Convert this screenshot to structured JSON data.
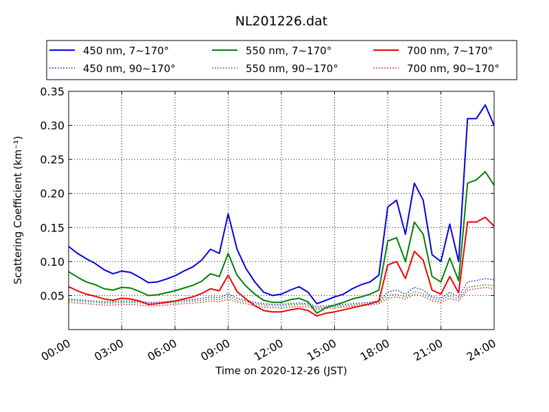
{
  "chart_data": {
    "type": "line",
    "title": "NL201226.dat",
    "xlabel": "Time on 2020-12-26 (JST)",
    "ylabel": "Scattering Coefficient (km⁻¹)",
    "xlim": [
      "00:00",
      "24:00"
    ],
    "ylim": [
      0,
      0.35
    ],
    "grid": true,
    "legend_position": "top",
    "x_ticks": [
      "00:00",
      "03:00",
      "06:00",
      "09:00",
      "12:00",
      "15:00",
      "18:00",
      "21:00",
      "24:00"
    ],
    "y_ticks": [
      "0.05",
      "0.10",
      "0.15",
      "0.20",
      "0.25",
      "0.30",
      "0.35"
    ],
    "x": [
      "00:00",
      "00:30",
      "01:00",
      "01:30",
      "02:00",
      "02:30",
      "03:00",
      "03:30",
      "04:00",
      "04:30",
      "05:00",
      "05:30",
      "06:00",
      "06:30",
      "07:00",
      "07:30",
      "08:00",
      "08:30",
      "09:00",
      "09:30",
      "10:00",
      "10:30",
      "11:00",
      "11:30",
      "12:00",
      "12:30",
      "13:00",
      "13:30",
      "14:00",
      "14:30",
      "15:00",
      "15:30",
      "16:00",
      "16:30",
      "17:00",
      "17:30",
      "18:00",
      "18:30",
      "19:00",
      "19:30",
      "20:00",
      "20:30",
      "21:00",
      "21:30",
      "22:00",
      "22:30",
      "23:00",
      "23:30",
      "24:00"
    ],
    "series": [
      {
        "name": "450 nm, 7∼170°",
        "color": "#0000dd",
        "style": "solid",
        "values": [
          0.122,
          0.112,
          0.104,
          0.097,
          0.088,
          0.082,
          0.086,
          0.084,
          0.077,
          0.069,
          0.07,
          0.074,
          0.079,
          0.086,
          0.092,
          0.102,
          0.118,
          0.112,
          0.17,
          0.118,
          0.09,
          0.07,
          0.055,
          0.05,
          0.052,
          0.058,
          0.063,
          0.055,
          0.038,
          0.043,
          0.048,
          0.052,
          0.06,
          0.066,
          0.07,
          0.08,
          0.18,
          0.19,
          0.14,
          0.215,
          0.19,
          0.11,
          0.1,
          0.155,
          0.1,
          0.31,
          0.31,
          0.33,
          0.3
        ]
      },
      {
        "name": "450 nm, 90∼170°",
        "color": "#0000dd",
        "style": "dotted",
        "values": [
          0.045,
          0.044,
          0.043,
          0.042,
          0.041,
          0.041,
          0.042,
          0.042,
          0.041,
          0.04,
          0.04,
          0.041,
          0.042,
          0.043,
          0.044,
          0.046,
          0.048,
          0.047,
          0.053,
          0.046,
          0.043,
          0.04,
          0.038,
          0.037,
          0.037,
          0.038,
          0.039,
          0.038,
          0.034,
          0.035,
          0.036,
          0.037,
          0.038,
          0.039,
          0.04,
          0.042,
          0.055,
          0.058,
          0.052,
          0.062,
          0.058,
          0.048,
          0.046,
          0.055,
          0.048,
          0.07,
          0.072,
          0.075,
          0.073
        ]
      },
      {
        "name": "550 nm, 7∼170°",
        "color": "#008000",
        "style": "solid",
        "values": [
          0.085,
          0.077,
          0.07,
          0.066,
          0.06,
          0.058,
          0.062,
          0.061,
          0.056,
          0.05,
          0.051,
          0.054,
          0.057,
          0.061,
          0.065,
          0.071,
          0.082,
          0.078,
          0.112,
          0.08,
          0.064,
          0.052,
          0.043,
          0.04,
          0.04,
          0.044,
          0.046,
          0.041,
          0.024,
          0.032,
          0.036,
          0.04,
          0.045,
          0.048,
          0.052,
          0.058,
          0.13,
          0.135,
          0.1,
          0.158,
          0.14,
          0.078,
          0.07,
          0.105,
          0.072,
          0.215,
          0.22,
          0.232,
          0.212
        ]
      },
      {
        "name": "550 nm, 90∼170°",
        "color": "#008000",
        "style": "dotted",
        "values": [
          0.043,
          0.042,
          0.041,
          0.04,
          0.039,
          0.039,
          0.04,
          0.04,
          0.039,
          0.038,
          0.038,
          0.039,
          0.04,
          0.041,
          0.042,
          0.043,
          0.045,
          0.044,
          0.049,
          0.043,
          0.041,
          0.038,
          0.036,
          0.035,
          0.035,
          0.036,
          0.037,
          0.036,
          0.032,
          0.033,
          0.034,
          0.035,
          0.036,
          0.037,
          0.038,
          0.04,
          0.05,
          0.052,
          0.048,
          0.056,
          0.053,
          0.045,
          0.043,
          0.05,
          0.045,
          0.062,
          0.064,
          0.066,
          0.064
        ]
      },
      {
        "name": "700 nm, 7∼170°",
        "color": "#ee0000",
        "style": "solid",
        "values": [
          0.063,
          0.057,
          0.052,
          0.049,
          0.045,
          0.043,
          0.046,
          0.045,
          0.042,
          0.037,
          0.038,
          0.04,
          0.042,
          0.045,
          0.048,
          0.053,
          0.06,
          0.057,
          0.08,
          0.056,
          0.045,
          0.035,
          0.028,
          0.026,
          0.026,
          0.029,
          0.031,
          0.028,
          0.02,
          0.024,
          0.026,
          0.029,
          0.032,
          0.035,
          0.038,
          0.042,
          0.095,
          0.1,
          0.075,
          0.115,
          0.102,
          0.058,
          0.052,
          0.078,
          0.054,
          0.158,
          0.158,
          0.165,
          0.152
        ]
      },
      {
        "name": "700 nm, 90∼170°",
        "color": "#ee0000",
        "style": "dotted",
        "values": [
          0.04,
          0.039,
          0.038,
          0.037,
          0.036,
          0.036,
          0.037,
          0.037,
          0.036,
          0.035,
          0.035,
          0.036,
          0.037,
          0.038,
          0.039,
          0.04,
          0.042,
          0.041,
          0.045,
          0.04,
          0.038,
          0.035,
          0.033,
          0.032,
          0.032,
          0.033,
          0.034,
          0.033,
          0.03,
          0.031,
          0.032,
          0.033,
          0.034,
          0.035,
          0.036,
          0.038,
          0.046,
          0.048,
          0.045,
          0.052,
          0.049,
          0.042,
          0.04,
          0.046,
          0.042,
          0.058,
          0.06,
          0.062,
          0.06
        ]
      }
    ]
  }
}
